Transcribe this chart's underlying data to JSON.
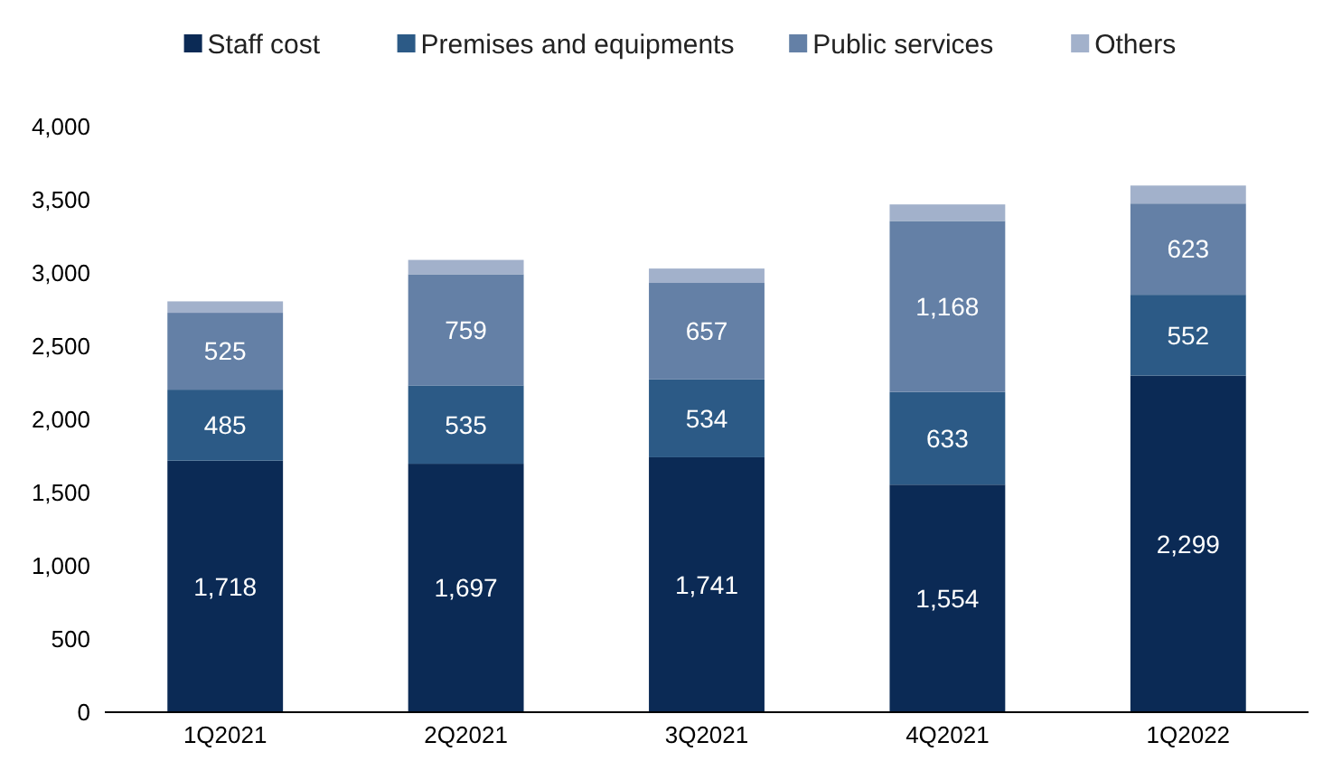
{
  "chart_data": {
    "type": "bar",
    "stacked": true,
    "legend": "top",
    "grid": false,
    "categories": [
      "1Q2021",
      "2Q2021",
      "3Q2021",
      "4Q2021",
      "1Q2022"
    ],
    "ylim": [
      0,
      4000
    ],
    "yticks": [
      {
        "value": 0,
        "label": "0"
      },
      {
        "value": 500,
        "label": "500"
      },
      {
        "value": 1000,
        "label": "1,000"
      },
      {
        "value": 1500,
        "label": "1,500"
      },
      {
        "value": 2000,
        "label": "2,000"
      },
      {
        "value": 2500,
        "label": "2,500"
      },
      {
        "value": 3000,
        "label": "3,000"
      },
      {
        "value": 3500,
        "label": "3,500"
      },
      {
        "value": 4000,
        "label": "4,000"
      }
    ],
    "series": [
      {
        "name": "Staff cost",
        "color": "#0b2a55",
        "values": [
          1718,
          1697,
          1741,
          1554,
          2299
        ],
        "value_labels": [
          "1,718",
          "1,697",
          "1,741",
          "1,554",
          "2,299"
        ]
      },
      {
        "name": "Premises and equipments",
        "color": "#2c5a86",
        "values": [
          485,
          535,
          534,
          633,
          552
        ],
        "value_labels": [
          "485",
          "535",
          "534",
          "633",
          "552"
        ]
      },
      {
        "name": "Public services",
        "color": "#6480a6",
        "values": [
          525,
          759,
          657,
          1168,
          623
        ],
        "value_labels": [
          "525",
          "759",
          "657",
          "1,168",
          "623"
        ]
      },
      {
        "name": "Others",
        "color": "#a2b1cb",
        "values": [
          78,
          98,
          98,
          113,
          123
        ]
      }
    ]
  }
}
